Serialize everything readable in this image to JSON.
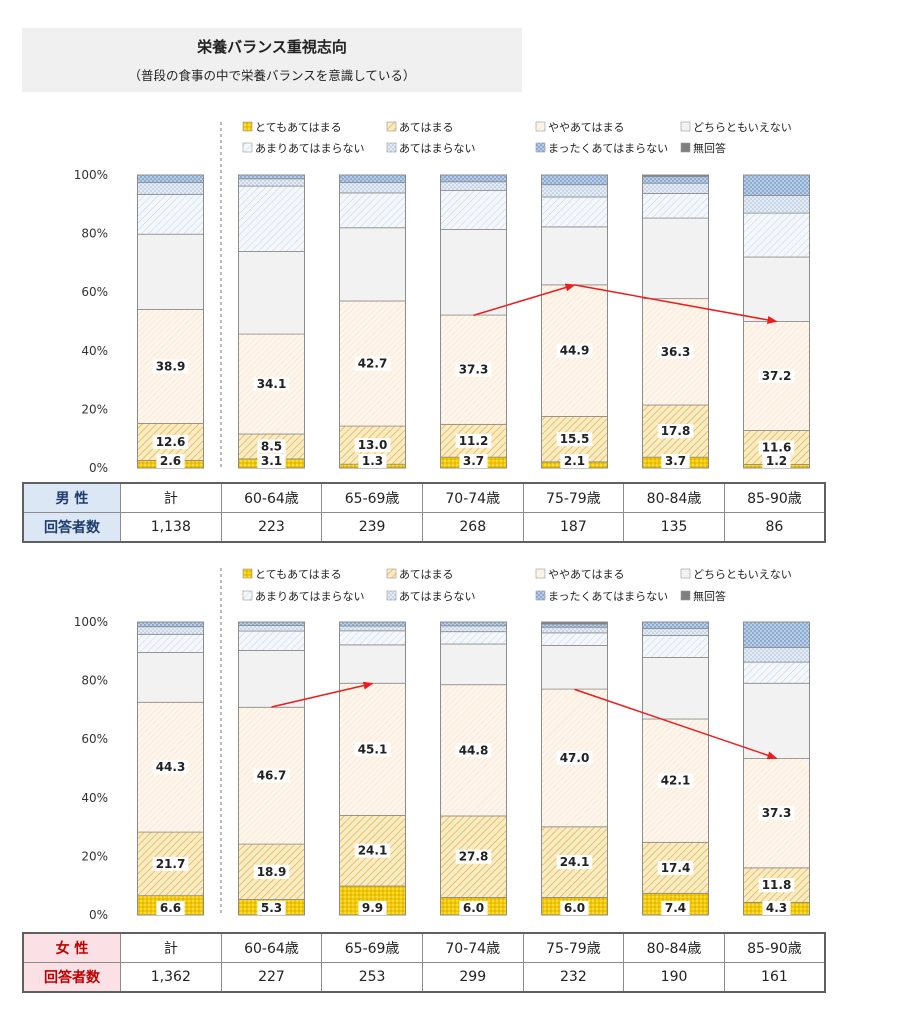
{
  "header": {
    "title": "栄養バランス重視志向",
    "subtitle": "（普段の食事の中で栄養バランスを意識している）"
  },
  "legend": [
    {
      "label": "とてもあてはまる",
      "color": "#f2c500",
      "pattern": "dots"
    },
    {
      "label": "あてはまる",
      "color": "#f6dfa0",
      "pattern": "diag"
    },
    {
      "label": "ややあてはまる",
      "color": "#fdf0e3",
      "pattern": "fine"
    },
    {
      "label": "どちらともいえない",
      "color": "#f2f2f2",
      "pattern": "none"
    },
    {
      "label": "あまりあてはまらない",
      "color": "#e9f0f8",
      "pattern": "diag-light"
    },
    {
      "label": "あてはまらない",
      "color": "#dbe5f1",
      "pattern": "dots-light"
    },
    {
      "label": "まったくあてはまらない",
      "color": "#aac4e0",
      "pattern": "check"
    },
    {
      "label": "無回答",
      "color": "#7f7f7f",
      "pattern": "none"
    }
  ],
  "chart_data": [
    {
      "type": "bar",
      "stacked": true,
      "gender": "男 性",
      "respondents_label": "回答者数",
      "categories": [
        "計",
        "60-64歳",
        "65-69歳",
        "70-74歳",
        "75-79歳",
        "80-84歳",
        "85-90歳"
      ],
      "respondents": [
        "1,138",
        "223",
        "239",
        "268",
        "187",
        "135",
        "86"
      ],
      "y_ticks": [
        "0%",
        "20%",
        "40%",
        "60%",
        "80%",
        "100%"
      ],
      "ylim": [
        0,
        100
      ],
      "series": [
        {
          "name": "とてもあてはまる",
          "values": [
            2.6,
            3.1,
            1.3,
            3.7,
            2.1,
            3.7,
            1.2
          ],
          "labeled": true
        },
        {
          "name": "あてはまる",
          "values": [
            12.6,
            8.5,
            13.0,
            11.2,
            15.5,
            17.8,
            11.6
          ],
          "labeled": true
        },
        {
          "name": "ややあてはまる",
          "values": [
            38.9,
            34.1,
            42.7,
            37.3,
            44.9,
            36.3,
            37.2
          ],
          "labeled": true
        },
        {
          "name": "どちらともいえない",
          "values": [
            25.7,
            28.2,
            25.0,
            29.2,
            19.8,
            27.5,
            22.0
          ],
          "labeled": false
        },
        {
          "name": "あまりあてはまらない",
          "values": [
            13.6,
            22.3,
            11.9,
            13.3,
            10.2,
            8.4,
            15.0
          ],
          "labeled": false
        },
        {
          "name": "あてはまらない",
          "values": [
            4.0,
            2.5,
            3.5,
            3.0,
            4.2,
            3.5,
            6.0
          ],
          "labeled": false
        },
        {
          "name": "まったくあてはまらない",
          "values": [
            2.6,
            1.3,
            2.6,
            2.3,
            3.3,
            2.3,
            7.0
          ],
          "labeled": false
        },
        {
          "name": "無回答",
          "values": [
            0.0,
            0.0,
            0.0,
            0.0,
            0.0,
            0.5,
            0.0
          ],
          "labeled": false
        }
      ],
      "trend_arrows": [
        {
          "from": [
            3,
            52.1
          ],
          "to": [
            4,
            62.5
          ]
        },
        {
          "from": [
            4,
            62.5
          ],
          "to": [
            6,
            50.0
          ]
        }
      ]
    },
    {
      "type": "bar",
      "stacked": true,
      "gender": "女 性",
      "respondents_label": "回答者数",
      "categories": [
        "計",
        "60-64歳",
        "65-69歳",
        "70-74歳",
        "75-79歳",
        "80-84歳",
        "85-90歳"
      ],
      "respondents": [
        "1,362",
        "227",
        "253",
        "299",
        "232",
        "190",
        "161"
      ],
      "y_ticks": [
        "0%",
        "20%",
        "40%",
        "60%",
        "80%",
        "100%"
      ],
      "ylim": [
        0,
        100
      ],
      "series": [
        {
          "name": "とてもあてはまる",
          "values": [
            6.6,
            5.3,
            9.9,
            6.0,
            6.0,
            7.4,
            4.3
          ],
          "labeled": true
        },
        {
          "name": "あてはまる",
          "values": [
            21.7,
            18.9,
            24.1,
            27.8,
            24.1,
            17.4,
            11.8
          ],
          "labeled": true
        },
        {
          "name": "ややあてはまる",
          "values": [
            44.3,
            46.7,
            45.1,
            44.8,
            47.0,
            42.1,
            37.3
          ],
          "labeled": true
        },
        {
          "name": "どちらともいえない",
          "values": [
            17.0,
            19.4,
            13.1,
            13.9,
            14.9,
            21.0,
            25.7
          ],
          "labeled": false
        },
        {
          "name": "あまりあてはまらない",
          "values": [
            6.2,
            6.6,
            4.8,
            4.2,
            4.3,
            7.5,
            7.2
          ],
          "labeled": false
        },
        {
          "name": "あてはまらない",
          "values": [
            2.6,
            1.9,
            1.6,
            2.0,
            1.9,
            2.4,
            5.0
          ],
          "labeled": false
        },
        {
          "name": "まったくあてはまらない",
          "values": [
            1.6,
            1.2,
            1.4,
            1.3,
            1.1,
            2.2,
            8.7
          ],
          "labeled": false
        },
        {
          "name": "無回答",
          "values": [
            0.0,
            0.0,
            0.0,
            0.0,
            0.7,
            0.0,
            0.0
          ],
          "labeled": false
        }
      ],
      "trend_arrows": [
        {
          "from": [
            1,
            71.0
          ],
          "to": [
            2,
            79.0
          ]
        },
        {
          "from": [
            4,
            77.0
          ],
          "to": [
            6,
            53.5
          ]
        }
      ]
    }
  ]
}
